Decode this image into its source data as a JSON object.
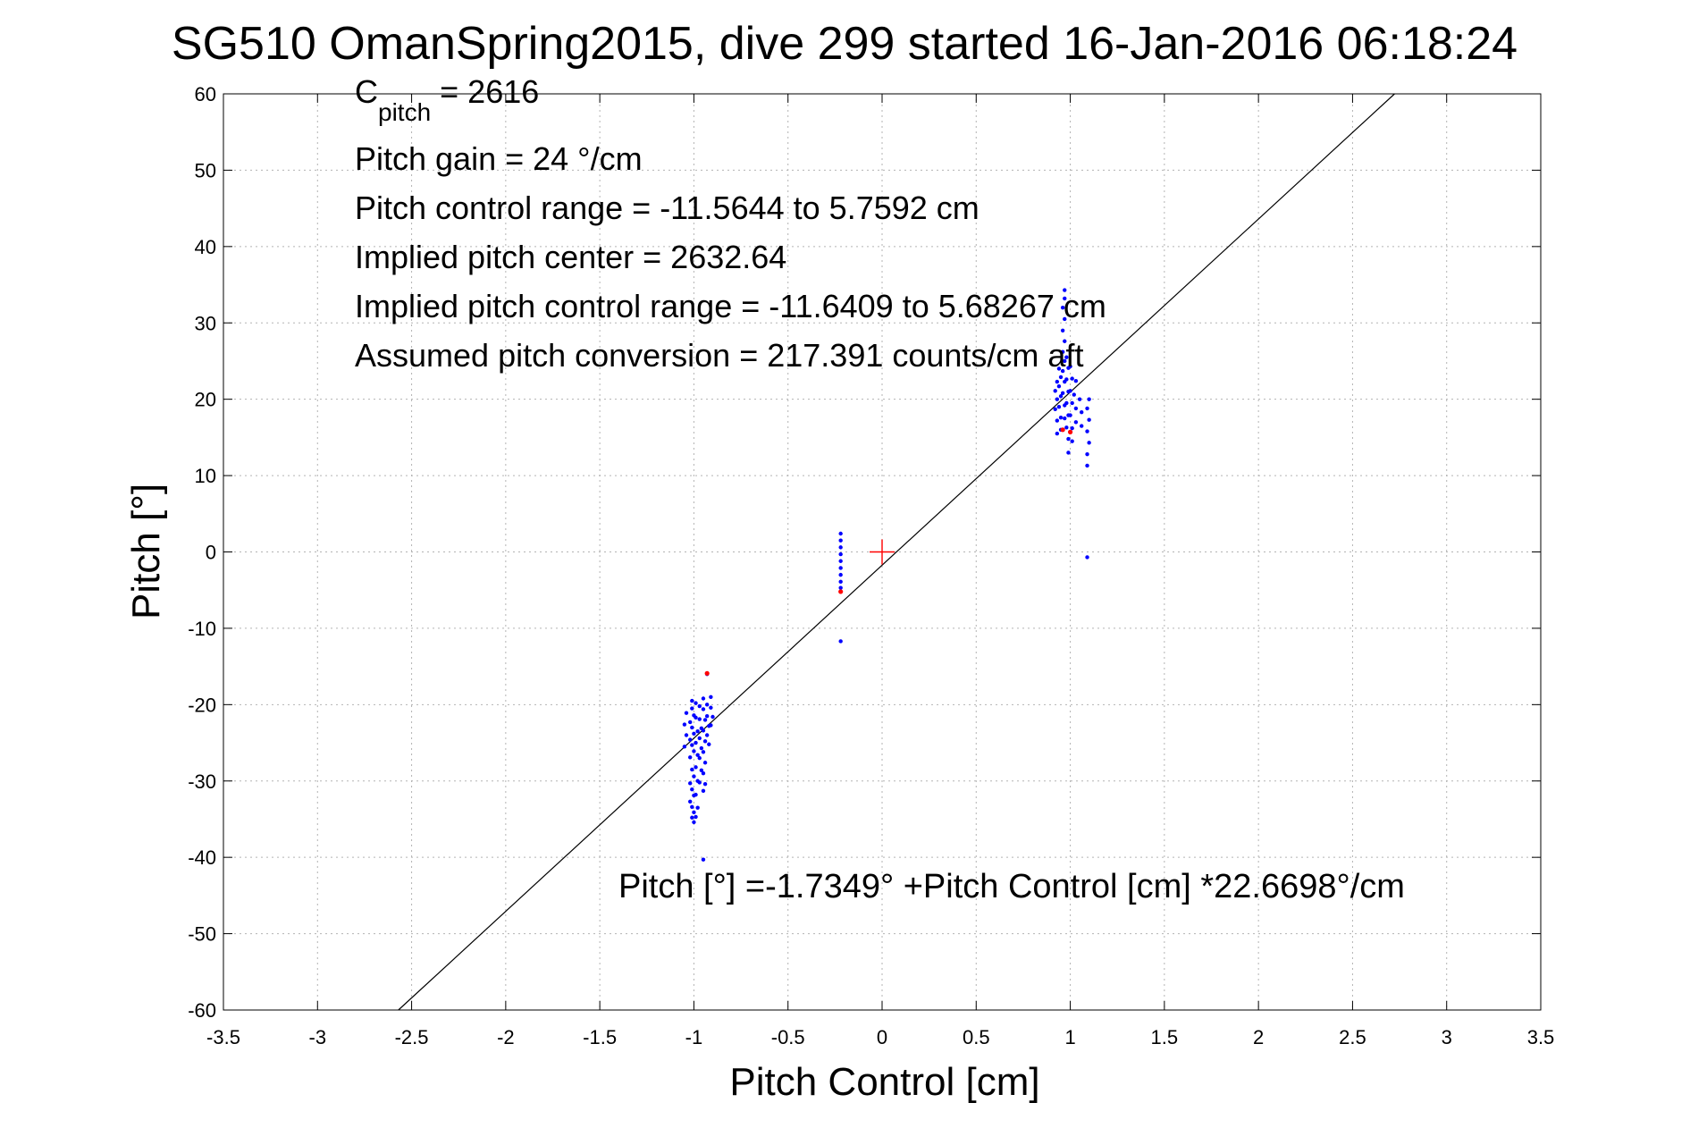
{
  "chart_data": {
    "type": "scatter",
    "title": "SG510 OmanSpring2015, dive 299 started 16-Jan-2016 06:18:24",
    "xlabel": "Pitch Control [cm]",
    "ylabel": "Pitch [°]",
    "xlim": [
      -3.5,
      3.5
    ],
    "ylim": [
      -60,
      60
    ],
    "xticks": [
      -3.5,
      -3,
      -2.5,
      -2,
      -1.5,
      -1,
      -0.5,
      0,
      0.5,
      1,
      1.5,
      2,
      2.5,
      3,
      3.5
    ],
    "xtick_labels": [
      "-3.5",
      "-3",
      "-2.5",
      "-2",
      "-1.5",
      "-1",
      "-0.5",
      "0",
      "0.5",
      "1",
      "1.5",
      "2",
      "2.5",
      "3",
      "3.5"
    ],
    "yticks": [
      -60,
      -50,
      -40,
      -30,
      -20,
      -10,
      0,
      10,
      20,
      30,
      40,
      50,
      60
    ],
    "ytick_labels": [
      "-60",
      "-50",
      "-40",
      "-30",
      "-20",
      "-10",
      "0",
      "10",
      "20",
      "30",
      "40",
      "50",
      "60"
    ],
    "grid": true,
    "annotations": {
      "c_pitch_main": "C",
      "c_pitch_sub": "pitch",
      "c_pitch_value": " = 2616",
      "lines": [
        "Pitch gain = 24 °/cm",
        "Pitch control range = -11.5644 to 5.7592 cm",
        "Implied pitch center = 2632.64",
        "Implied pitch control range = -11.6409 to 5.68267 cm",
        "Assumed pitch conversion = 217.391 counts/cm aft"
      ],
      "fit_equation": "Pitch [°] =-1.7349° +Pitch Control [cm] *22.6698°/cm"
    },
    "fit_line": {
      "intercept": -1.7349,
      "slope": 22.6698,
      "color": "#000000"
    },
    "center_marker": {
      "x": 0,
      "y": 0,
      "color": "#ff0000"
    },
    "series": [
      {
        "color": "#0000ff",
        "points": [
          [
            -1.01,
            -19.5
          ],
          [
            -1.01,
            -20.5
          ],
          [
            -1.0,
            -21.4
          ],
          [
            -1.02,
            -22.3
          ],
          [
            -1.01,
            -23.0
          ],
          [
            -1.0,
            -23.8
          ],
          [
            -1.02,
            -24.6
          ],
          [
            -1.01,
            -25.3
          ],
          [
            -1.0,
            -26.1
          ],
          [
            -1.02,
            -26.9
          ],
          [
            -1.01,
            -28.5
          ],
          [
            -1.0,
            -29.4
          ],
          [
            -1.02,
            -30.3
          ],
          [
            -1.01,
            -31.1
          ],
          [
            -1.0,
            -31.9
          ],
          [
            -1.02,
            -32.7
          ],
          [
            -1.01,
            -33.4
          ],
          [
            -1.0,
            -34.1
          ],
          [
            -1.01,
            -34.8
          ],
          [
            -1.0,
            -35.4
          ],
          [
            -0.99,
            -19.8
          ],
          [
            -0.99,
            -21.7
          ],
          [
            -0.98,
            -23.5
          ],
          [
            -0.99,
            -25.0
          ],
          [
            -0.98,
            -26.6
          ],
          [
            -0.99,
            -28.2
          ],
          [
            -0.98,
            -30.0
          ],
          [
            -0.99,
            -31.8
          ],
          [
            -0.98,
            -33.5
          ],
          [
            -0.99,
            -34.7
          ],
          [
            -0.97,
            -20.2
          ],
          [
            -0.97,
            -21.9
          ],
          [
            -0.96,
            -23.1
          ],
          [
            -0.97,
            -24.4
          ],
          [
            -0.96,
            -25.7
          ],
          [
            -0.97,
            -27.0
          ],
          [
            -0.96,
            -28.6
          ],
          [
            -0.97,
            -30.2
          ],
          [
            -0.95,
            -19.2
          ],
          [
            -0.95,
            -20.6
          ],
          [
            -0.94,
            -22.0
          ],
          [
            -0.95,
            -23.4
          ],
          [
            -0.94,
            -24.8
          ],
          [
            -0.95,
            -26.2
          ],
          [
            -0.94,
            -27.6
          ],
          [
            -0.95,
            -29.0
          ],
          [
            -0.94,
            -30.4
          ],
          [
            -0.95,
            -31.3
          ],
          [
            -0.93,
            -20.0
          ],
          [
            -0.93,
            -21.5
          ],
          [
            -0.92,
            -22.8
          ],
          [
            -0.93,
            -24.0
          ],
          [
            -0.92,
            -25.2
          ],
          [
            -0.91,
            -19.0
          ],
          [
            -0.91,
            -20.4
          ],
          [
            -0.9,
            -21.6
          ],
          [
            -0.91,
            -22.7
          ],
          [
            -1.04,
            -21.1
          ],
          [
            -1.05,
            -22.6
          ],
          [
            -1.04,
            -24.0
          ],
          [
            -1.05,
            -25.5
          ],
          [
            -0.95,
            -40.3
          ],
          [
            -0.93,
            -16.0
          ],
          [
            -0.22,
            2.4
          ],
          [
            -0.22,
            1.5
          ],
          [
            -0.22,
            0.6
          ],
          [
            -0.22,
            -0.3
          ],
          [
            -0.22,
            -1.2
          ],
          [
            -0.22,
            -2.1
          ],
          [
            -0.22,
            -3.0
          ],
          [
            -0.22,
            -3.9
          ],
          [
            -0.22,
            -4.7
          ],
          [
            -0.22,
            -11.7
          ],
          [
            0.93,
            15.5
          ],
          [
            0.93,
            17.2
          ],
          [
            0.92,
            18.7
          ],
          [
            0.93,
            20.0
          ],
          [
            0.92,
            21.1
          ],
          [
            0.93,
            22.3
          ],
          [
            0.95,
            16.0
          ],
          [
            0.95,
            17.6
          ],
          [
            0.94,
            19.0
          ],
          [
            0.95,
            20.4
          ],
          [
            0.94,
            21.7
          ],
          [
            0.95,
            22.9
          ],
          [
            0.94,
            24.0
          ],
          [
            0.97,
            17.5
          ],
          [
            0.97,
            19.2
          ],
          [
            0.96,
            20.8
          ],
          [
            0.97,
            22.3
          ],
          [
            0.96,
            23.7
          ],
          [
            0.97,
            25.0
          ],
          [
            0.96,
            26.2
          ],
          [
            0.97,
            27.6
          ],
          [
            0.96,
            29.0
          ],
          [
            0.97,
            30.5
          ],
          [
            0.96,
            32.0
          ],
          [
            0.97,
            33.2
          ],
          [
            0.97,
            34.3
          ],
          [
            0.99,
            13.0
          ],
          [
            0.99,
            14.8
          ],
          [
            0.98,
            16.3
          ],
          [
            0.99,
            17.9
          ],
          [
            0.98,
            19.5
          ],
          [
            0.99,
            21.0
          ],
          [
            0.98,
            22.6
          ],
          [
            0.99,
            24.1
          ],
          [
            0.98,
            25.5
          ],
          [
            1.01,
            14.5
          ],
          [
            1.01,
            16.2
          ],
          [
            1.0,
            17.9
          ],
          [
            1.01,
            19.5
          ],
          [
            1.0,
            21.1
          ],
          [
            1.01,
            22.7
          ],
          [
            1.0,
            24.3
          ],
          [
            1.03,
            17.0
          ],
          [
            1.03,
            18.8
          ],
          [
            1.02,
            20.6
          ],
          [
            1.03,
            22.4
          ],
          [
            1.06,
            16.5
          ],
          [
            1.06,
            18.3
          ],
          [
            1.05,
            20.0
          ],
          [
            1.09,
            11.3
          ],
          [
            1.09,
            12.8
          ],
          [
            1.1,
            14.3
          ],
          [
            1.09,
            15.8
          ],
          [
            1.1,
            17.3
          ],
          [
            1.09,
            18.8
          ],
          [
            1.1,
            20.0
          ],
          [
            1.09,
            -0.7
          ]
        ]
      },
      {
        "color": "#ff0000",
        "points": [
          [
            -0.93,
            -15.9
          ],
          [
            -0.22,
            -5.2
          ],
          [
            0.96,
            16.0
          ],
          [
            1.0,
            15.7
          ]
        ]
      }
    ]
  }
}
